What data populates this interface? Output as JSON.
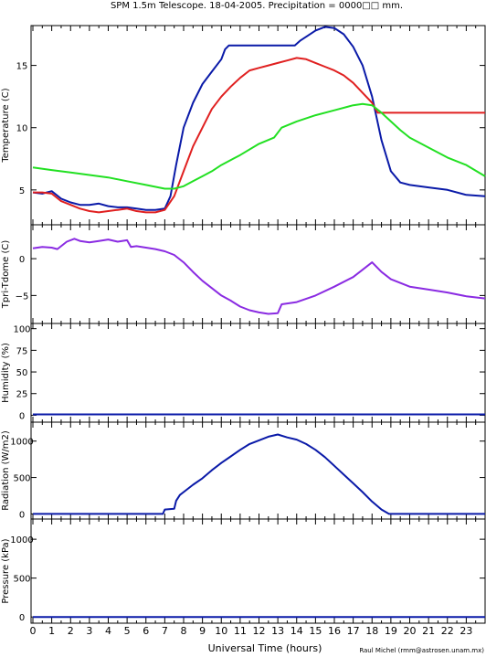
{
  "title": "SPM 1.5m Telescope. 18-04-2005. Precipitation = 0000□□ mm.",
  "xlabel": "Universal Time (hours)",
  "credit": "Raul Michel (rmm@astrosen.unam.mx)",
  "colors": {
    "blue": "#0a1aa8",
    "red": "#e02020",
    "green": "#22e022",
    "purple": "#8a2be2",
    "frame": "#000000"
  },
  "chart_data": [
    {
      "type": "line",
      "ylabel": "Temperature (C)",
      "xlim": [
        0,
        24
      ],
      "ylim": [
        2.2,
        18.2
      ],
      "yticks": [
        5,
        10,
        15
      ],
      "series": [
        {
          "color": "blue",
          "x": [
            0,
            0.5,
            1,
            1.5,
            2,
            2.5,
            3,
            3.5,
            4,
            4.5,
            5,
            5.5,
            6,
            6.5,
            7,
            7.3,
            7.6,
            8,
            8.5,
            9,
            9.5,
            10,
            10.2,
            10.4,
            13.9,
            14.2,
            14.6,
            15,
            15.5,
            16,
            16.5,
            17,
            17.5,
            18,
            18.5,
            19,
            19.5,
            20,
            21,
            22,
            23,
            24
          ],
          "y": [
            4.8,
            4.7,
            4.9,
            4.3,
            4.0,
            3.8,
            3.8,
            3.9,
            3.7,
            3.6,
            3.6,
            3.5,
            3.4,
            3.4,
            3.5,
            4.5,
            7.0,
            10.0,
            12.0,
            13.5,
            14.5,
            15.5,
            16.3,
            16.6,
            16.6,
            17.0,
            17.4,
            17.8,
            18.1,
            18.0,
            17.5,
            16.5,
            15.0,
            12.5,
            9.0,
            6.5,
            5.6,
            5.4,
            5.2,
            5.0,
            4.6,
            4.5
          ]
        },
        {
          "color": "red",
          "x": [
            0,
            0.5,
            1,
            1.5,
            2,
            2.5,
            3,
            3.5,
            4,
            4.5,
            5,
            5.5,
            6,
            6.5,
            7,
            7.5,
            8,
            8.5,
            9,
            9.5,
            10,
            10.5,
            11,
            11.5,
            12,
            12.5,
            13,
            13.5,
            14,
            14.5,
            15,
            15.5,
            16,
            16.5,
            17,
            17.5,
            18,
            18.3,
            24
          ],
          "y": [
            4.8,
            4.8,
            4.7,
            4.1,
            3.8,
            3.5,
            3.3,
            3.2,
            3.3,
            3.4,
            3.5,
            3.3,
            3.2,
            3.2,
            3.4,
            4.5,
            6.5,
            8.5,
            10.0,
            11.5,
            12.5,
            13.3,
            14.0,
            14.6,
            14.8,
            15.0,
            15.2,
            15.4,
            15.6,
            15.5,
            15.2,
            14.9,
            14.6,
            14.2,
            13.6,
            12.8,
            12.0,
            11.2,
            11.2
          ]
        },
        {
          "color": "green",
          "x": [
            0,
            1,
            2,
            3,
            4,
            5,
            6,
            7,
            7.5,
            8,
            8.5,
            9,
            9.5,
            10,
            11,
            12,
            12.8,
            13.2,
            14,
            15,
            16,
            17,
            17.5,
            18,
            18.5,
            19,
            19.5,
            20,
            21,
            22,
            23,
            24
          ],
          "y": [
            6.8,
            6.6,
            6.4,
            6.2,
            6.0,
            5.7,
            5.4,
            5.1,
            5.1,
            5.3,
            5.7,
            6.1,
            6.5,
            7.0,
            7.8,
            8.7,
            9.2,
            10.0,
            10.5,
            11.0,
            11.4,
            11.8,
            11.9,
            11.8,
            11.2,
            10.5,
            9.8,
            9.2,
            8.4,
            7.6,
            7.0,
            6.1
          ]
        }
      ]
    },
    {
      "type": "line",
      "ylabel": "Tpri-Tdome (C)",
      "xlim": [
        0,
        24
      ],
      "ylim": [
        -8.8,
        4.6
      ],
      "yticks": [
        0,
        -5
      ],
      "series": [
        {
          "color": "purple",
          "x": [
            0,
            0.5,
            1,
            1.3,
            1.8,
            2.2,
            2.5,
            3,
            3.5,
            4,
            4.5,
            5,
            5.2,
            5.5,
            6,
            6.5,
            7,
            7.5,
            8,
            8.5,
            9,
            9.5,
            10,
            10.5,
            11,
            11.5,
            12,
            12.5,
            13,
            13.2,
            14,
            15,
            16,
            17,
            17.5,
            18,
            18.5,
            19,
            20,
            21,
            22,
            23,
            24
          ],
          "y": [
            1.4,
            1.6,
            1.5,
            1.3,
            2.3,
            2.7,
            2.4,
            2.2,
            2.4,
            2.6,
            2.3,
            2.5,
            1.6,
            1.7,
            1.5,
            1.3,
            1.0,
            0.5,
            -0.5,
            -1.8,
            -3.0,
            -4.0,
            -5.0,
            -5.7,
            -6.5,
            -7.0,
            -7.3,
            -7.5,
            -7.4,
            -6.2,
            -5.9,
            -5.0,
            -3.8,
            -2.5,
            -1.5,
            -0.5,
            -1.8,
            -2.8,
            -3.8,
            -4.2,
            -4.6,
            -5.1,
            -5.4
          ]
        }
      ]
    },
    {
      "type": "line",
      "ylabel": "Humidity (%)",
      "xlim": [
        0,
        24
      ],
      "ylim": [
        -8,
        106
      ],
      "yticks": [
        0,
        25,
        50,
        75,
        100
      ],
      "series": [
        {
          "color": "blue",
          "x": [
            0,
            24
          ],
          "y": [
            1,
            1
          ]
        }
      ]
    },
    {
      "type": "line",
      "ylabel": "Radiation (W/m2)",
      "xlim": [
        0,
        24
      ],
      "ylim": [
        -70,
        1260
      ],
      "yticks": [
        0,
        500,
        1000
      ],
      "series": [
        {
          "color": "blue",
          "x": [
            0,
            6.9,
            7.0,
            7.5,
            7.6,
            7.8,
            8,
            8.5,
            9,
            9.5,
            10,
            10.5,
            11,
            11.5,
            12,
            12.5,
            13,
            13.5,
            14,
            14.5,
            15,
            15.5,
            16,
            16.5,
            17,
            17.5,
            18,
            18.5,
            18.9,
            19,
            24
          ],
          "y": [
            0,
            0,
            60,
            70,
            180,
            260,
            300,
            400,
            490,
            600,
            700,
            790,
            880,
            960,
            1010,
            1060,
            1090,
            1050,
            1020,
            960,
            880,
            780,
            660,
            540,
            420,
            300,
            170,
            60,
            0,
            0,
            0
          ]
        }
      ]
    },
    {
      "type": "line",
      "ylabel": "Pressure (kPa)",
      "xlim": [
        0,
        24
      ],
      "ylim": [
        -80,
        1260
      ],
      "yticks": [
        0,
        500,
        1000
      ],
      "series": [
        {
          "color": "blue",
          "x": [
            0,
            24
          ],
          "y": [
            0,
            0
          ]
        }
      ]
    }
  ],
  "xticks": [
    0,
    1,
    2,
    3,
    4,
    5,
    6,
    7,
    8,
    9,
    10,
    11,
    12,
    13,
    14,
    15,
    16,
    17,
    18,
    19,
    20,
    21,
    22,
    23
  ]
}
